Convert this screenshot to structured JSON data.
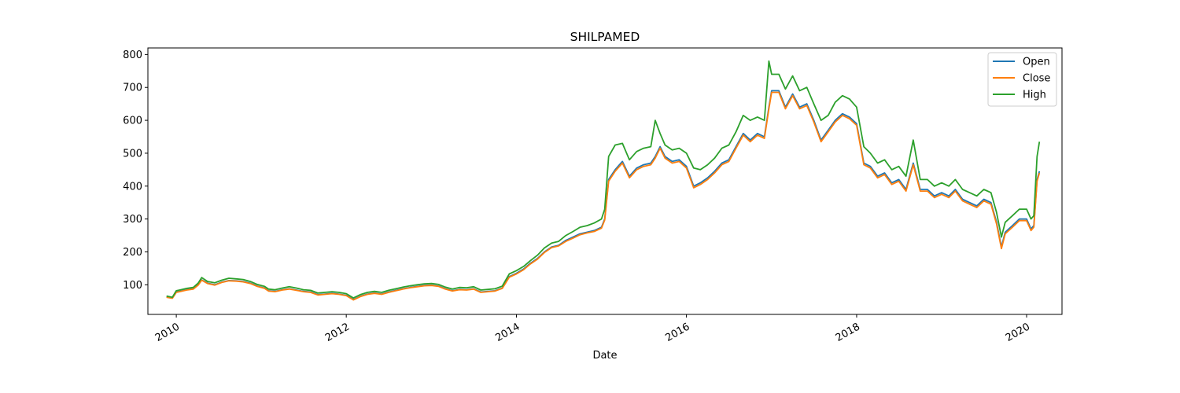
{
  "chart_data": {
    "type": "line",
    "title": "SHILPAMED",
    "xlabel": "Date",
    "ylabel": "",
    "xlim": [
      "2009-09-01",
      "2020-06-01"
    ],
    "ylim": [
      10,
      820
    ],
    "x_ticks": [
      "2010",
      "2012",
      "2014",
      "2016",
      "2018",
      "2020"
    ],
    "y_ticks": [
      100,
      200,
      300,
      400,
      500,
      600,
      700,
      800
    ],
    "legend_position": "top-right",
    "grid": false,
    "x": [
      "2009-11-20",
      "2009-12-15",
      "2010-01-01",
      "2010-01-15",
      "2010-02-15",
      "2010-03-15",
      "2010-04-05",
      "2010-04-20",
      "2010-05-15",
      "2010-06-15",
      "2010-07-15",
      "2010-08-15",
      "2010-09-15",
      "2010-10-15",
      "2010-11-15",
      "2010-12-15",
      "2011-01-15",
      "2011-02-01",
      "2011-03-01",
      "2011-04-01",
      "2011-05-01",
      "2011-06-01",
      "2011-07-01",
      "2011-08-01",
      "2011-09-01",
      "2011-10-01",
      "2011-11-01",
      "2011-12-01",
      "2012-01-01",
      "2012-02-01",
      "2012-03-01",
      "2012-04-01",
      "2012-05-01",
      "2012-06-01",
      "2012-07-01",
      "2012-08-01",
      "2012-09-01",
      "2012-10-01",
      "2012-11-01",
      "2012-12-01",
      "2013-01-01",
      "2013-02-01",
      "2013-03-01",
      "2013-04-01",
      "2013-05-01",
      "2013-06-01",
      "2013-07-01",
      "2013-08-01",
      "2013-09-01",
      "2013-10-01",
      "2013-11-01",
      "2013-12-01",
      "2014-01-01",
      "2014-02-01",
      "2014-03-01",
      "2014-04-01",
      "2014-05-01",
      "2014-06-01",
      "2014-07-01",
      "2014-08-01",
      "2014-09-01",
      "2014-10-01",
      "2014-11-01",
      "2014-12-01",
      "2015-01-01",
      "2015-01-15",
      "2015-02-01",
      "2015-03-01",
      "2015-04-01",
      "2015-05-01",
      "2015-06-01",
      "2015-07-01",
      "2015-08-01",
      "2015-08-20",
      "2015-09-10",
      "2015-10-01",
      "2015-11-01",
      "2015-12-01",
      "2016-01-01",
      "2016-02-01",
      "2016-03-01",
      "2016-04-01",
      "2016-05-01",
      "2016-06-01",
      "2016-07-01",
      "2016-08-01",
      "2016-09-01",
      "2016-10-01",
      "2016-11-01",
      "2016-12-01",
      "2016-12-20",
      "2017-01-01",
      "2017-02-01",
      "2017-03-01",
      "2017-04-01",
      "2017-05-01",
      "2017-06-01",
      "2017-07-01",
      "2017-08-01",
      "2017-09-01",
      "2017-10-01",
      "2017-11-01",
      "2017-12-01",
      "2018-01-01",
      "2018-02-01",
      "2018-03-01",
      "2018-04-01",
      "2018-05-01",
      "2018-06-01",
      "2018-07-01",
      "2018-08-01",
      "2018-09-01",
      "2018-10-01",
      "2018-11-01",
      "2018-12-01",
      "2019-01-01",
      "2019-02-01",
      "2019-03-01",
      "2019-04-01",
      "2019-05-01",
      "2019-06-01",
      "2019-07-01",
      "2019-08-01",
      "2019-08-25",
      "2019-09-15",
      "2019-10-01",
      "2019-11-01",
      "2019-12-01",
      "2020-01-01",
      "2020-01-20",
      "2020-02-01",
      "2020-02-15",
      "2020-02-25"
    ],
    "series": [
      {
        "name": "Open",
        "color": "#1f77b4",
        "values": [
          63,
          60,
          78,
          80,
          85,
          88,
          100,
          115,
          105,
          100,
          108,
          113,
          112,
          110,
          105,
          96,
          90,
          82,
          80,
          85,
          88,
          84,
          80,
          78,
          70,
          72,
          74,
          72,
          68,
          55,
          65,
          72,
          75,
          72,
          78,
          83,
          88,
          92,
          95,
          98,
          99,
          96,
          88,
          82,
          86,
          85,
          88,
          78,
          80,
          82,
          90,
          125,
          135,
          148,
          165,
          180,
          200,
          215,
          220,
          235,
          245,
          255,
          260,
          265,
          275,
          300,
          420,
          450,
          475,
          430,
          455,
          465,
          470,
          490,
          520,
          490,
          475,
          480,
          460,
          400,
          410,
          425,
          445,
          470,
          480,
          520,
          560,
          540,
          560,
          550,
          640,
          690,
          690,
          640,
          680,
          640,
          650,
          600,
          540,
          570,
          600,
          620,
          610,
          590,
          470,
          460,
          430,
          440,
          410,
          420,
          390,
          470,
          390,
          390,
          370,
          380,
          370,
          390,
          360,
          350,
          340,
          360,
          350,
          290,
          215,
          260,
          280,
          300,
          300,
          270,
          280,
          420,
          445
        ]
      },
      {
        "name": "Close",
        "color": "#ff7f0e",
        "values": [
          62,
          59,
          77,
          79,
          84,
          87,
          99,
          114,
          104,
          99,
          107,
          112,
          111,
          109,
          104,
          95,
          89,
          81,
          79,
          84,
          87,
          83,
          79,
          77,
          69,
          71,
          73,
          71,
          67,
          54,
          64,
          71,
          74,
          71,
          77,
          82,
          87,
          91,
          94,
          97,
          98,
          95,
          87,
          81,
          85,
          84,
          87,
          77,
          79,
          81,
          89,
          123,
          133,
          146,
          163,
          178,
          198,
          213,
          218,
          232,
          242,
          252,
          258,
          262,
          272,
          297,
          415,
          445,
          470,
          425,
          450,
          460,
          465,
          485,
          515,
          485,
          470,
          475,
          455,
          395,
          405,
          420,
          440,
          465,
          475,
          515,
          555,
          535,
          555,
          545,
          635,
          685,
          685,
          635,
          675,
          635,
          645,
          595,
          535,
          565,
          595,
          615,
          605,
          585,
          465,
          455,
          425,
          435,
          405,
          415,
          385,
          465,
          385,
          385,
          365,
          375,
          365,
          385,
          355,
          345,
          335,
          355,
          345,
          285,
          210,
          255,
          275,
          295,
          295,
          265,
          275,
          415,
          440
        ]
      },
      {
        "name": "High",
        "color": "#2ca02c",
        "values": [
          66,
          62,
          82,
          84,
          89,
          92,
          105,
          122,
          110,
          106,
          114,
          120,
          118,
          116,
          110,
          101,
          95,
          87,
          85,
          90,
          94,
          90,
          85,
          83,
          75,
          77,
          79,
          77,
          73,
          60,
          70,
          77,
          80,
          77,
          83,
          88,
          93,
          97,
          100,
          103,
          104,
          101,
          93,
          87,
          92,
          91,
          94,
          84,
          86,
          88,
          96,
          133,
          143,
          156,
          173,
          190,
          212,
          227,
          232,
          250,
          262,
          275,
          280,
          288,
          300,
          330,
          490,
          525,
          530,
          480,
          505,
          515,
          520,
          600,
          560,
          525,
          510,
          515,
          500,
          455,
          450,
          465,
          485,
          515,
          525,
          565,
          615,
          600,
          610,
          600,
          780,
          740,
          740,
          695,
          735,
          690,
          700,
          650,
          600,
          615,
          655,
          675,
          665,
          640,
          520,
          500,
          470,
          480,
          450,
          460,
          430,
          540,
          420,
          420,
          400,
          410,
          400,
          420,
          390,
          380,
          370,
          390,
          380,
          320,
          245,
          290,
          310,
          330,
          330,
          300,
          310,
          490,
          535
        ]
      }
    ]
  }
}
